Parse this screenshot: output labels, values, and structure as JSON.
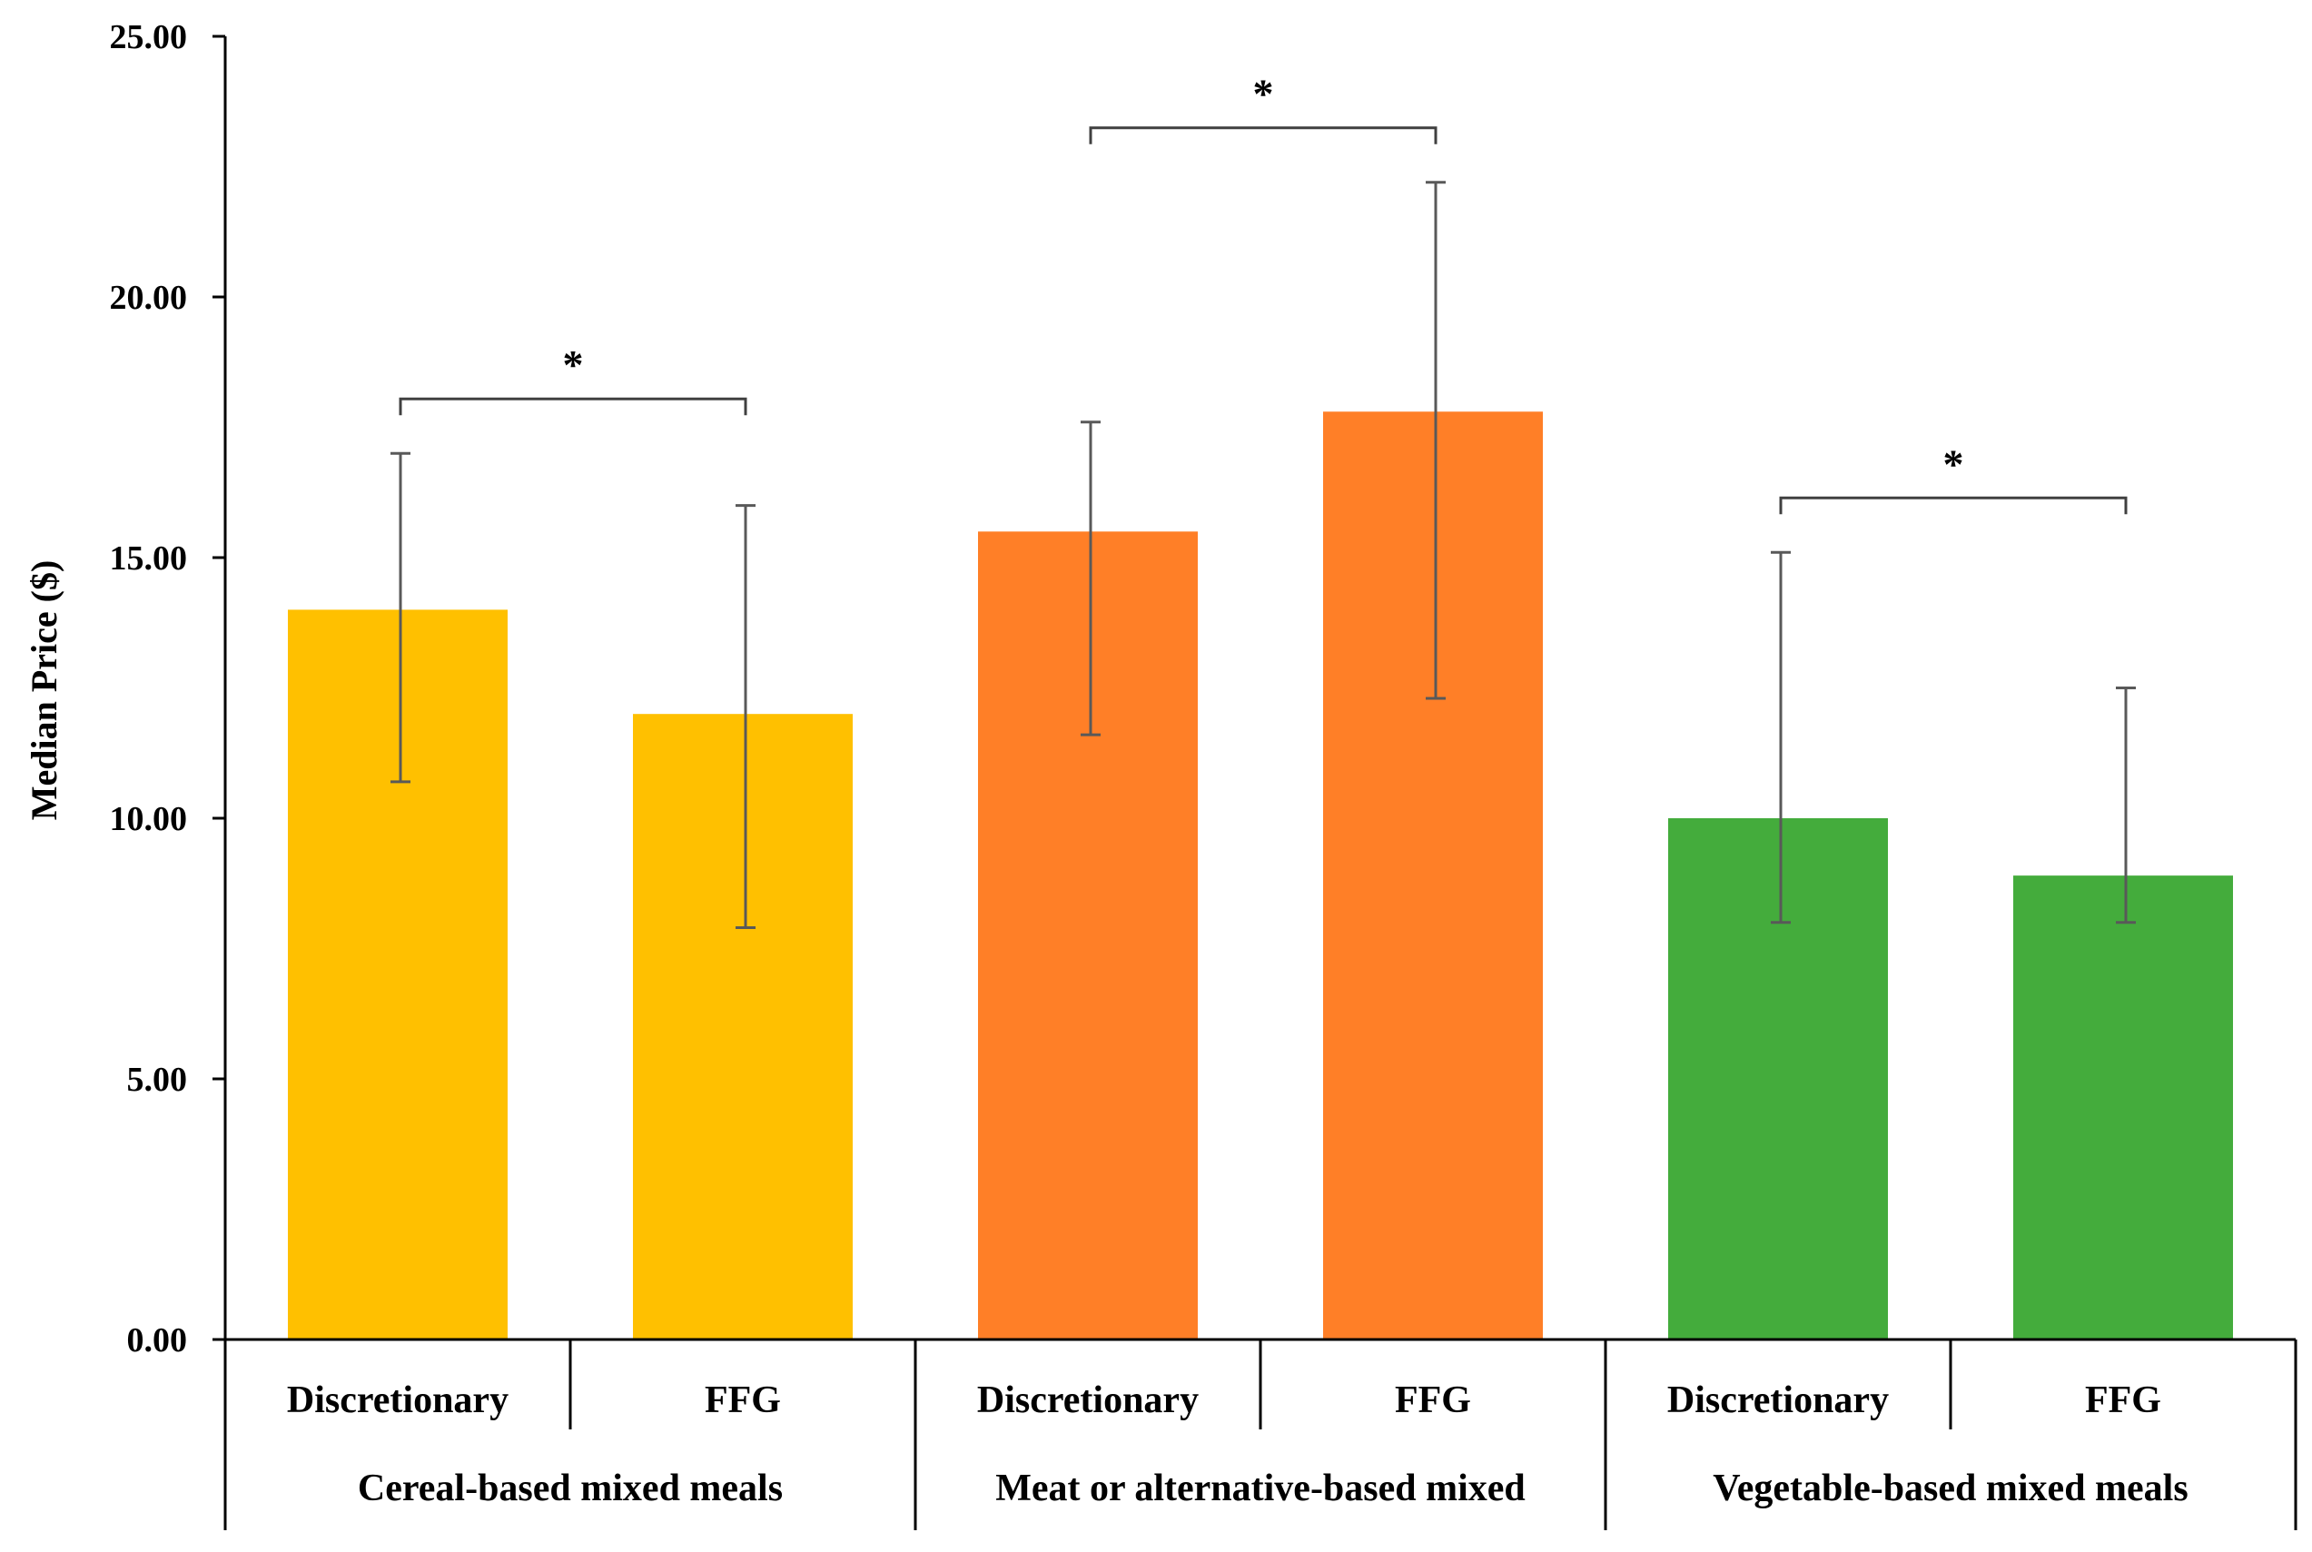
{
  "chart_data": {
    "type": "bar",
    "title": "",
    "xlabel": "",
    "ylabel": "Median Price ($)",
    "ylim": [
      0,
      25
    ],
    "yticks": [
      "0.00",
      "5.00",
      "10.00",
      "15.00",
      "20.00",
      "25.00"
    ],
    "ytick_values": [
      0,
      5,
      10,
      15,
      20,
      25
    ],
    "grid": false,
    "groups": [
      {
        "name": "Cereal-based mixed meals",
        "color": "#FFC000",
        "bars": [
          {
            "label": "Discretionary",
            "value": 14.0,
            "err_low": 10.7,
            "err_high": 17.0
          },
          {
            "label": "FFG",
            "value": 12.0,
            "err_low": 7.9,
            "err_high": 16.0
          }
        ],
        "significance": "*"
      },
      {
        "name": "Meat or alternative-based mixed",
        "color": "#FF7F27",
        "bars": [
          {
            "label": "Discretionary",
            "value": 15.5,
            "err_low": 11.6,
            "err_high": 17.6
          },
          {
            "label": "FFG",
            "value": 17.8,
            "err_low": 12.3,
            "err_high": 22.2
          }
        ],
        "significance": "*"
      },
      {
        "name": "Vegetable-based mixed meals",
        "color": "#44AC3C",
        "bars": [
          {
            "label": "Discretionary",
            "value": 10.0,
            "err_low": 8.0,
            "err_high": 15.1
          },
          {
            "label": "FFG",
            "value": 8.9,
            "err_low": 8.0,
            "err_high": 12.5
          }
        ],
        "significance": "*"
      }
    ]
  }
}
